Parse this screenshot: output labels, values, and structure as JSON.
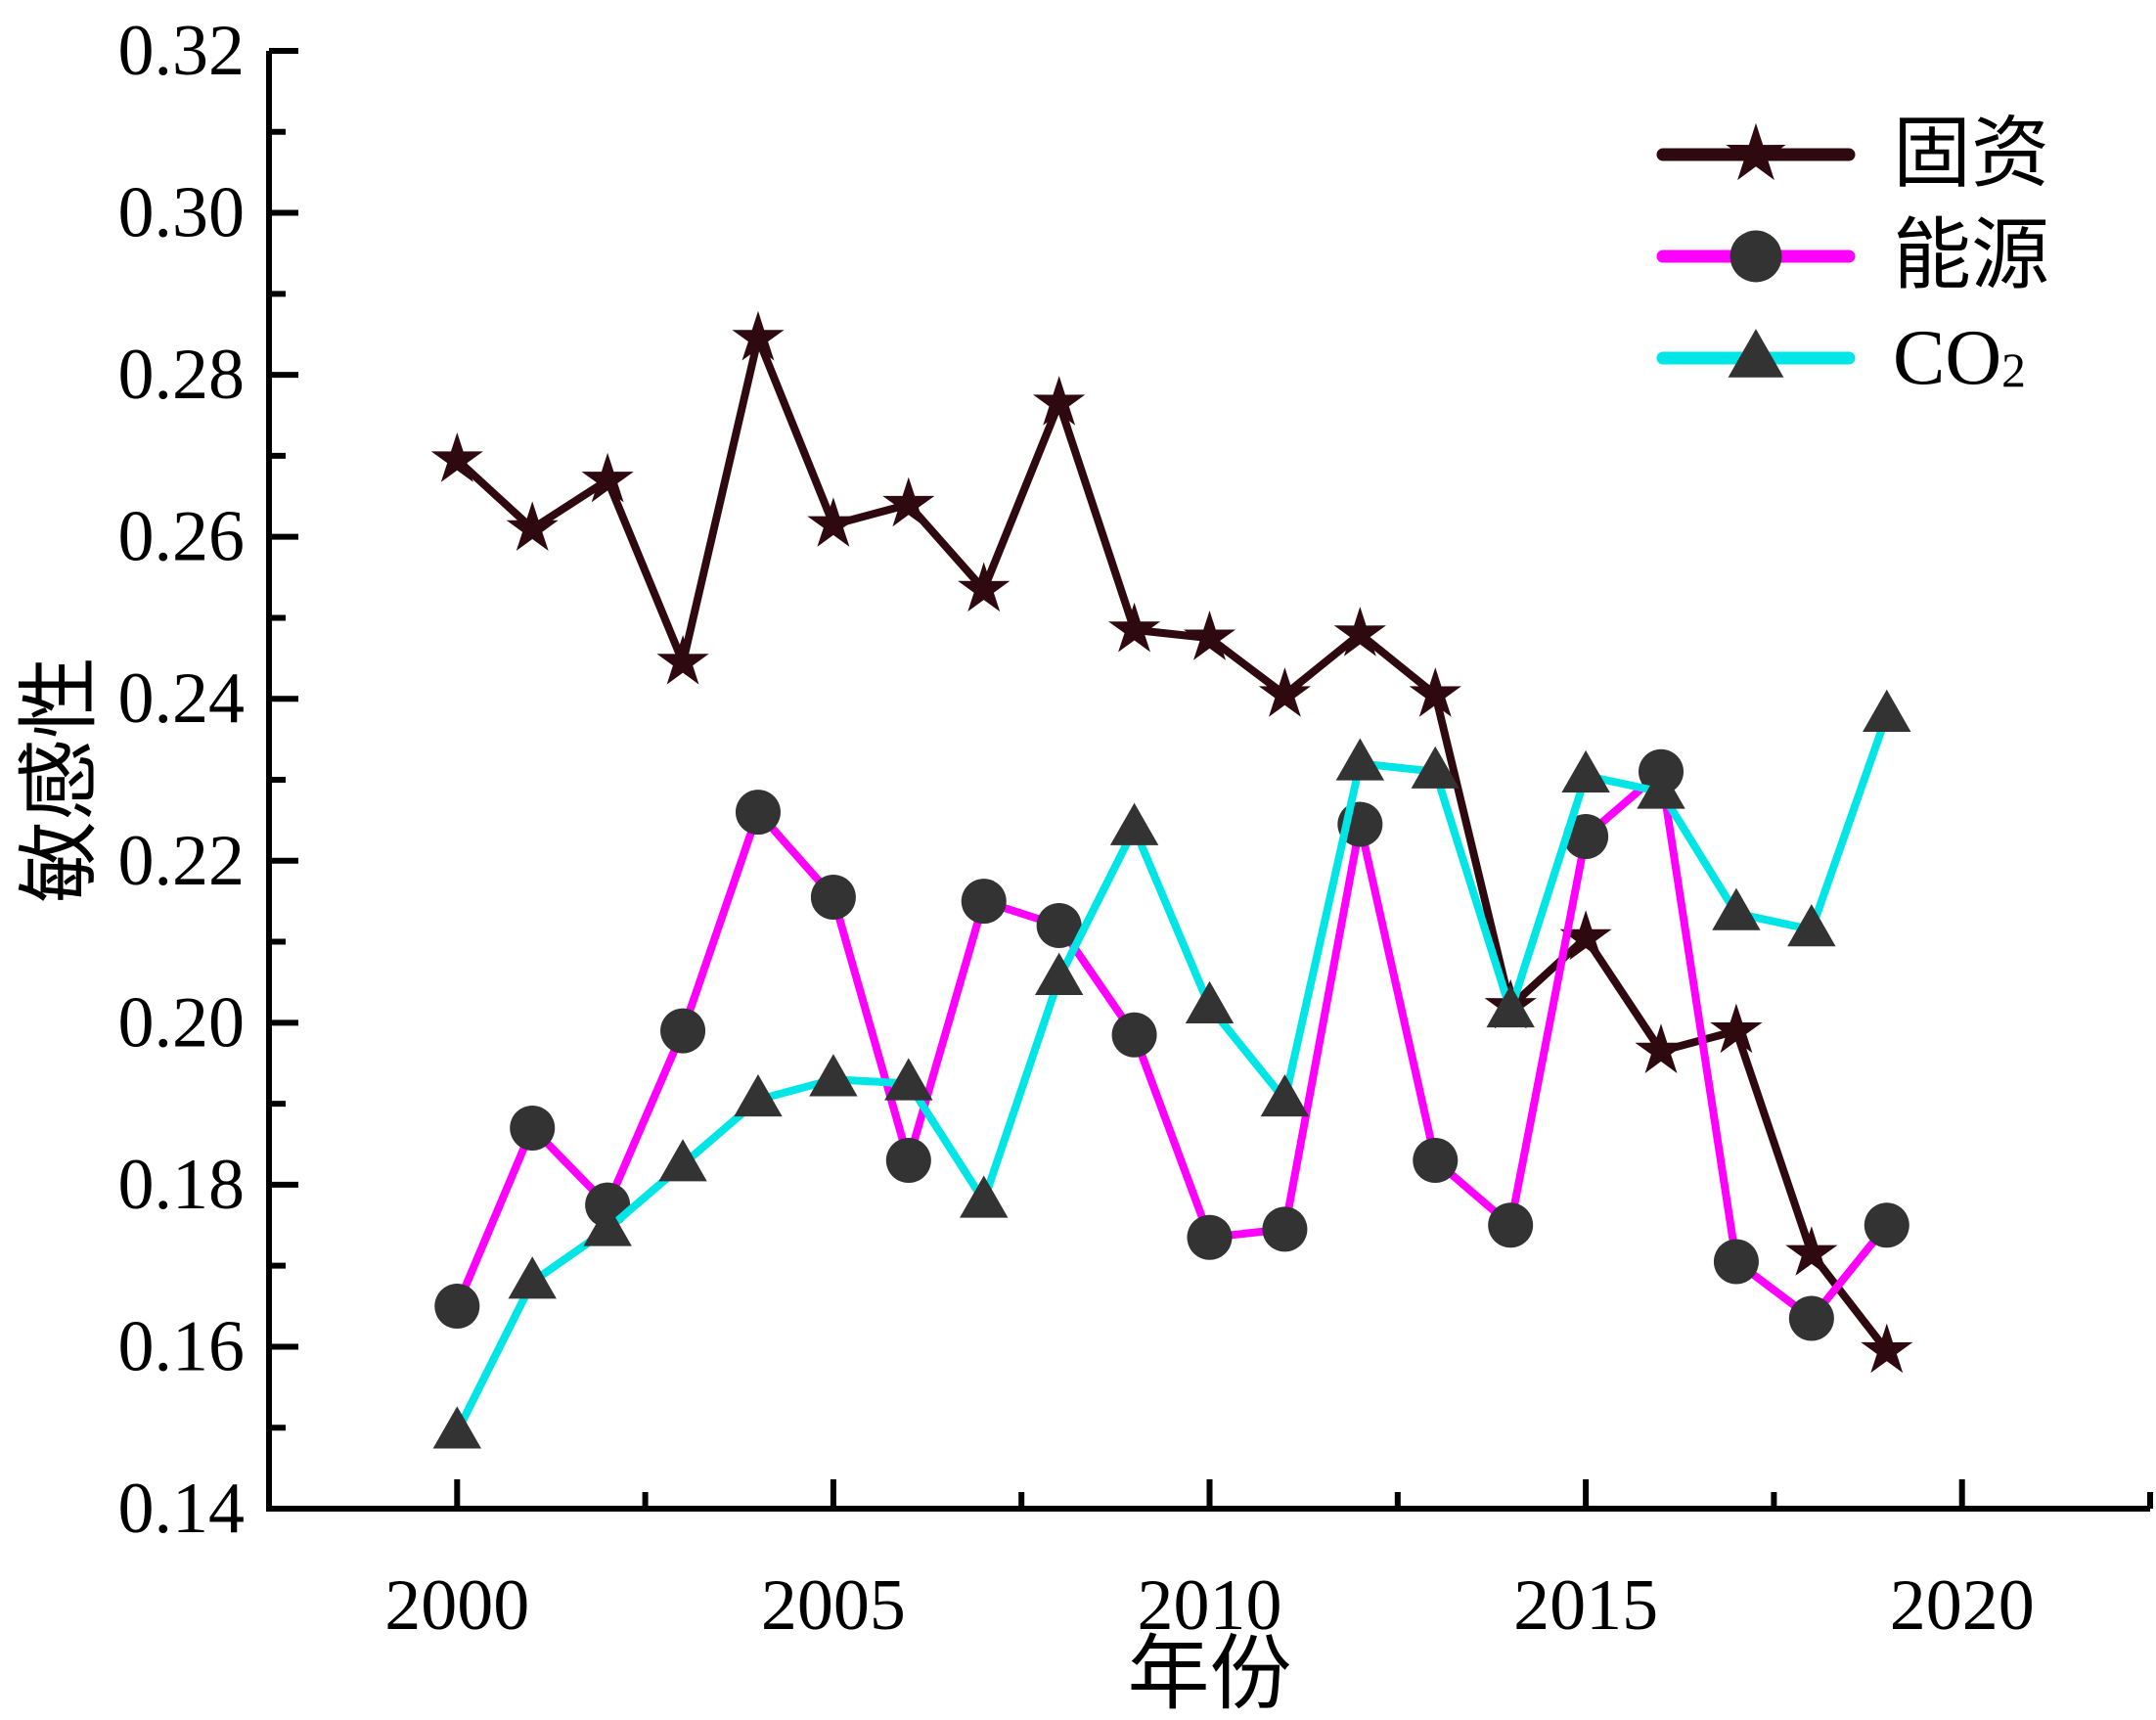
{
  "figure": {
    "background": "#ffffff",
    "text_color": "#000000",
    "axis_color": "#000000"
  },
  "chart_data": {
    "type": "line",
    "title": "",
    "xlabel": "年份",
    "ylabel": "敏感性",
    "x": [
      2000,
      2001,
      2002,
      2003,
      2004,
      2005,
      2006,
      2007,
      2008,
      2009,
      2010,
      2011,
      2012,
      2013,
      2014,
      2015,
      2016,
      2017,
      2018,
      2019
    ],
    "series": [
      {
        "id": "fixed-assets",
        "name": "固资",
        "color": "#2e0a10",
        "marker": "star",
        "marker_color": "#2e0a10",
        "values": [
          0.2695,
          0.261,
          0.267,
          0.2445,
          0.2845,
          0.2615,
          0.264,
          0.2535,
          0.2765,
          0.2485,
          0.2475,
          0.2405,
          0.248,
          0.2405,
          0.202,
          0.2105,
          0.1965,
          0.199,
          0.1715,
          0.1595
        ]
      },
      {
        "id": "energy",
        "name": "能源",
        "color": "#ff00ff",
        "marker": "circle",
        "marker_color": "#333333",
        "values": [
          0.165,
          0.187,
          0.1775,
          0.199,
          0.226,
          0.2155,
          0.183,
          0.215,
          0.212,
          0.1985,
          0.1735,
          0.1745,
          0.2245,
          0.183,
          0.175,
          0.223,
          0.231,
          0.1705,
          0.1635,
          0.175
        ]
      },
      {
        "id": "co2",
        "name": "CO₂",
        "color": "#00e6e6",
        "marker": "triangle",
        "marker_color": "#333333",
        "values": [
          0.1495,
          0.168,
          0.1745,
          0.1825,
          0.1905,
          0.193,
          0.1925,
          0.178,
          0.2055,
          0.224,
          0.202,
          0.1905,
          0.232,
          0.231,
          0.2015,
          0.2305,
          0.2285,
          0.2135,
          0.2115,
          0.238
        ]
      }
    ],
    "xlim": [
      1997.5,
      2022.5
    ],
    "ylim": [
      0.14,
      0.32
    ],
    "x_major_ticks": [
      2000,
      2005,
      2010,
      2015,
      2020
    ],
    "x_minor_ticks": [
      2002.5,
      2007.5,
      2012.5,
      2017.5,
      2022.5
    ],
    "y_major_step": 0.02,
    "y_minor_step": 0.01,
    "y_tick_decimals": 2,
    "grid": false,
    "legend_position": "top-right"
  }
}
